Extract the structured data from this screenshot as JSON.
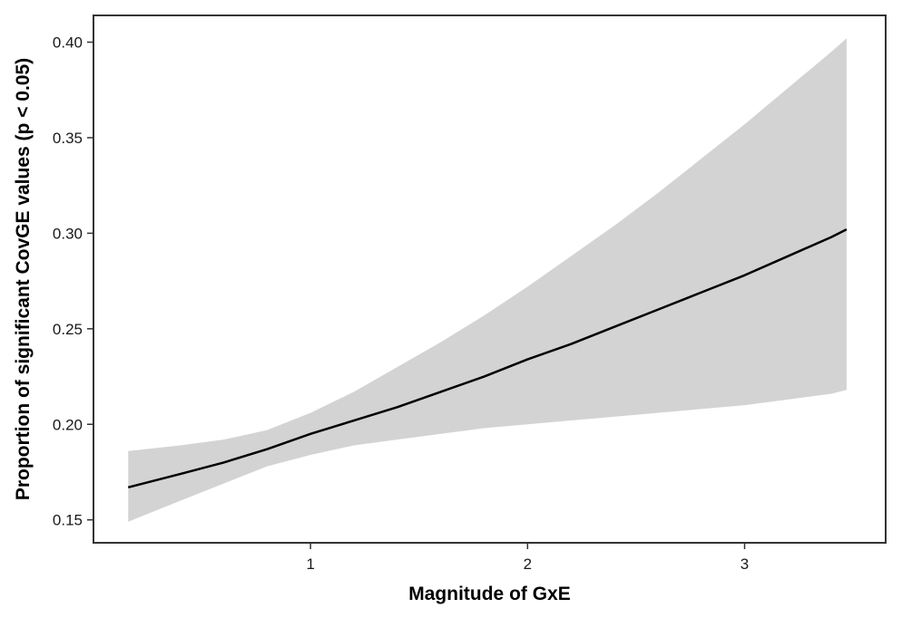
{
  "chart_data": {
    "type": "line",
    "title": "",
    "xlabel": "Magnitude of GxE",
    "ylabel": "Proportion of significant CovGE values (p < 0.05)",
    "xlim": [
      0.0,
      3.65
    ],
    "ylim": [
      0.138,
      0.414
    ],
    "x_ticks": [
      1,
      2,
      3
    ],
    "x_tick_labels": [
      "1",
      "2",
      "3"
    ],
    "y_ticks": [
      0.15,
      0.2,
      0.25,
      0.3,
      0.35,
      0.4
    ],
    "y_tick_labels": [
      "0.15",
      "0.20",
      "0.25",
      "0.30",
      "0.35",
      "0.40"
    ],
    "grid": false,
    "legend": "none",
    "series": [
      {
        "x": [
          0.16,
          0.4,
          0.6,
          0.8,
          1.0,
          1.2,
          1.4,
          1.6,
          1.8,
          2.0,
          2.2,
          2.4,
          2.6,
          2.8,
          3.0,
          3.2,
          3.4,
          3.47
        ],
        "y": [
          0.167,
          0.174,
          0.18,
          0.187,
          0.195,
          0.202,
          0.209,
          0.217,
          0.225,
          0.234,
          0.242,
          0.251,
          0.26,
          0.269,
          0.278,
          0.288,
          0.298,
          0.302
        ],
        "lower": [
          0.149,
          0.16,
          0.169,
          0.178,
          0.184,
          0.189,
          0.192,
          0.195,
          0.198,
          0.2,
          0.202,
          0.204,
          0.206,
          0.208,
          0.21,
          0.213,
          0.216,
          0.218
        ],
        "upper": [
          0.186,
          0.189,
          0.192,
          0.197,
          0.206,
          0.217,
          0.23,
          0.243,
          0.257,
          0.272,
          0.288,
          0.304,
          0.321,
          0.339,
          0.357,
          0.376,
          0.395,
          0.402
        ]
      }
    ],
    "colors": {
      "line": "#000000",
      "ribbon": "#d3d3d3",
      "frame": "#333333"
    }
  }
}
